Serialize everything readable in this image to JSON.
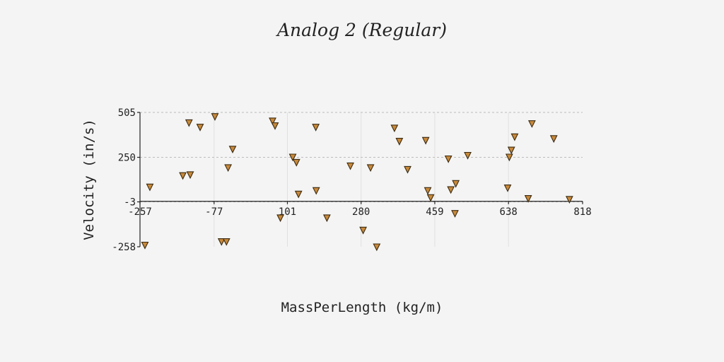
{
  "chart_data": {
    "type": "scatter",
    "title": "Analog 2 (Regular)",
    "xlabel": "MassPerLength (kg/m)",
    "ylabel": "Velocity (in/s)",
    "xlim": [
      -257,
      818
    ],
    "ylim": [
      -258,
      505
    ],
    "x_ticks": [
      -257,
      -77,
      101,
      280,
      459,
      638,
      818
    ],
    "y_ticks": [
      -258,
      -3,
      250,
      505
    ],
    "grid": true,
    "marker": "triangle-down",
    "marker_color": "#c8893a",
    "series": [
      {
        "x": [
          -245,
          -233,
          -153,
          -138,
          -135,
          -111,
          -75,
          -59,
          -47,
          -43,
          -32,
          65,
          71,
          84,
          114,
          123,
          128,
          170,
          171,
          197,
          254,
          285,
          303,
          318,
          361,
          373,
          393,
          437,
          442,
          449,
          492,
          498,
          508,
          510,
          539,
          636,
          640,
          645,
          653,
          686,
          695,
          748,
          786
        ],
        "y": [
          -250,
          80,
          145,
          445,
          150,
          420,
          480,
          -230,
          -230,
          190,
          295,
          455,
          428,
          -95,
          250,
          220,
          40,
          420,
          60,
          -95,
          200,
          -165,
          190,
          -260,
          415,
          340,
          180,
          345,
          60,
          20,
          240,
          65,
          -70,
          100,
          260,
          75,
          250,
          290,
          365,
          15,
          440,
          355,
          10
        ]
      }
    ]
  }
}
